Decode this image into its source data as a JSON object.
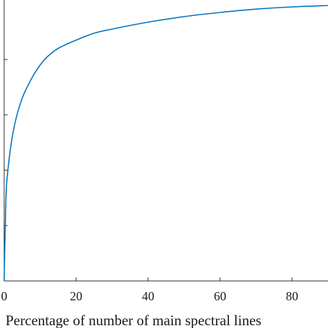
{
  "chart_data": {
    "type": "line",
    "title": "",
    "xlabel": "Percentage of number of main spectral lines",
    "ylabel": "",
    "xlim": [
      0,
      90
    ],
    "ylim": [
      0,
      1
    ],
    "x_ticks": [
      0,
      20,
      40,
      60,
      80
    ],
    "x_tick_labels": [
      "0",
      "20",
      "40",
      "60",
      "80"
    ],
    "y_ticks": [
      0.2,
      0.4,
      0.6,
      0.8
    ],
    "y_tick_labels": [],
    "grid": false,
    "series": [
      {
        "color": "#0072BD",
        "x": [
          0,
          0.5,
          1,
          2,
          3,
          4,
          5,
          6,
          8,
          10,
          12,
          15,
          20,
          25,
          30,
          40,
          50,
          60,
          70,
          80,
          90
        ],
        "y": [
          0,
          0.3,
          0.395,
          0.5,
          0.57,
          0.62,
          0.66,
          0.69,
          0.74,
          0.78,
          0.81,
          0.84,
          0.87,
          0.895,
          0.91,
          0.935,
          0.955,
          0.97,
          0.982,
          0.99,
          0.995
        ]
      }
    ]
  }
}
